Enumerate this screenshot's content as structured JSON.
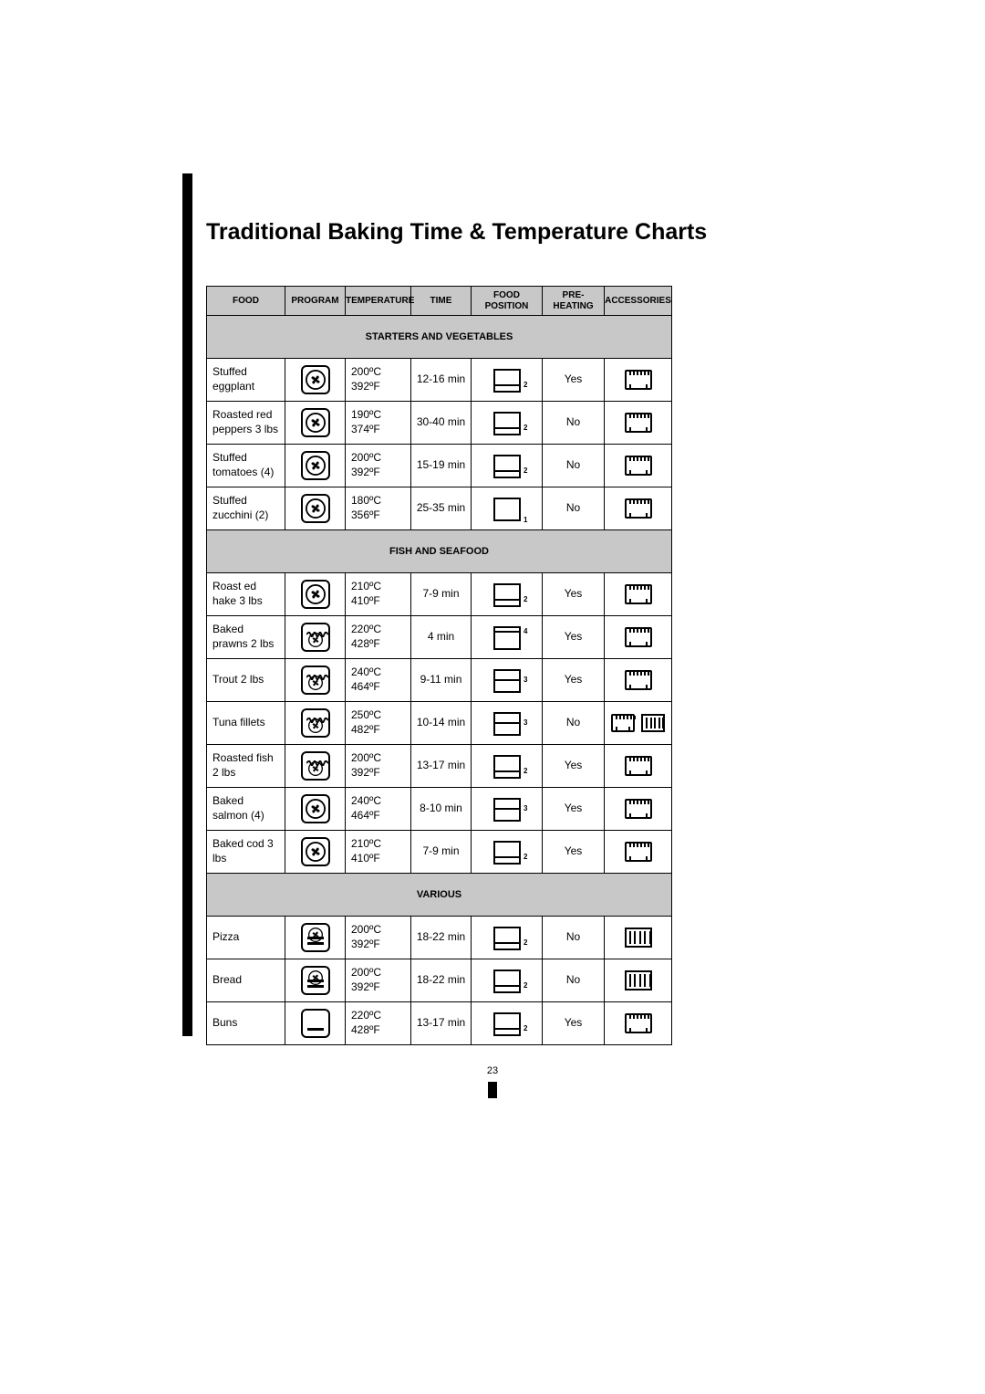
{
  "title": "Traditional Baking Time & Temperature Charts",
  "page_number": "23",
  "headers": {
    "food": "FOOD",
    "program": "PROGRAM",
    "temperature": "TEMPERATURE",
    "time": "TIME",
    "position": "FOOD POSITION",
    "preheating": "PRE-HEATING",
    "accessories": "ACCESSORIES"
  },
  "sections": [
    {
      "label": "STARTERS AND VEGETABLES",
      "rows": [
        {
          "food": "Stuffed eggplant",
          "program": "fan",
          "temp_c": "200ºC",
          "temp_f": "392ºF",
          "time": "12-16 min",
          "pos": "2",
          "pre": "Yes",
          "acc": "tray"
        },
        {
          "food": "Roasted red peppers 3 lbs",
          "program": "fan",
          "temp_c": "190ºC",
          "temp_f": "374ºF",
          "time": "30-40 min",
          "pos": "2",
          "pre": "No",
          "acc": "tray"
        },
        {
          "food": "Stuffed tomatoes (4)",
          "program": "fan",
          "temp_c": "200ºC",
          "temp_f": "392ºF",
          "time": "15-19 min",
          "pos": "2",
          "pre": "No",
          "acc": "tray"
        },
        {
          "food": "Stuffed zucchini (2)",
          "program": "fan",
          "temp_c": "180ºC",
          "temp_f": "356ºF",
          "time": "25-35 min",
          "pos": "1",
          "pre": "No",
          "acc": "tray"
        }
      ]
    },
    {
      "label": "FISH AND SEAFOOD",
      "rows": [
        {
          "food": "Roast ed hake 3 lbs",
          "program": "fan",
          "temp_c": "210ºC",
          "temp_f": "410ºF",
          "time": "7-9 min",
          "pos": "2",
          "pre": "Yes",
          "acc": "tray"
        },
        {
          "food": "Baked prawns 2 lbs",
          "program": "grill-fan",
          "temp_c": "220ºC",
          "temp_f": "428ºF",
          "time": "4 min",
          "pos": "4",
          "pre": "Yes",
          "acc": "tray"
        },
        {
          "food": "Trout 2 lbs",
          "program": "grill-fan",
          "temp_c": "240ºC",
          "temp_f": "464ºF",
          "time": "9-11 min",
          "pos": "3",
          "pre": "Yes",
          "acc": "tray"
        },
        {
          "food": "Tuna fillets",
          "program": "grill-fan",
          "temp_c": "250ºC",
          "temp_f": "482ºF",
          "time": "10-14 min",
          "pos": "3",
          "pre": "No",
          "acc": "tray-rack"
        },
        {
          "food": "Roasted fish 2 lbs",
          "program": "grill-fan",
          "temp_c": "200ºC",
          "temp_f": "392ºF",
          "time": "13-17 min",
          "pos": "2",
          "pre": "Yes",
          "acc": "tray"
        },
        {
          "food": "Baked salmon (4)",
          "program": "fan",
          "temp_c": "240ºC",
          "temp_f": "464ºF",
          "time": "8-10 min",
          "pos": "3",
          "pre": "Yes",
          "acc": "tray"
        },
        {
          "food": "Baked cod 3 lbs",
          "program": "fan",
          "temp_c": "210ºC",
          "temp_f": "410ºF",
          "time": "7-9 min",
          "pos": "2",
          "pre": "Yes",
          "acc": "tray"
        }
      ]
    },
    {
      "label": "VARIOUS",
      "rows": [
        {
          "food": "Pizza",
          "program": "fan-bottom",
          "temp_c": "200ºC",
          "temp_f": "392ºF",
          "time": "18-22 min",
          "pos": "2",
          "pre": "No",
          "acc": "rack"
        },
        {
          "food": "Bread",
          "program": "fan-bottom",
          "temp_c": "200ºC",
          "temp_f": "392ºF",
          "time": "18-22 min",
          "pos": "2",
          "pre": "No",
          "acc": "rack"
        },
        {
          "food": "Buns",
          "program": "bottom",
          "temp_c": "220ºC",
          "temp_f": "428ºF",
          "time": "13-17 min",
          "pos": "2",
          "pre": "Yes",
          "acc": "tray"
        }
      ]
    }
  ],
  "colors": {
    "section_bg": "#c8c8c8",
    "border": "#000000",
    "page_bg": "#ffffff"
  },
  "icons": {
    "programs": {
      "fan": "fan-only",
      "grill-fan": "top-grill-with-fan",
      "fan-bottom": "fan-with-bottom-heat",
      "bottom": "bottom-heat-only"
    },
    "accessories": {
      "tray": "baking-tray",
      "rack": "wire-rack",
      "tray-rack": "tray-plus-rack"
    }
  }
}
